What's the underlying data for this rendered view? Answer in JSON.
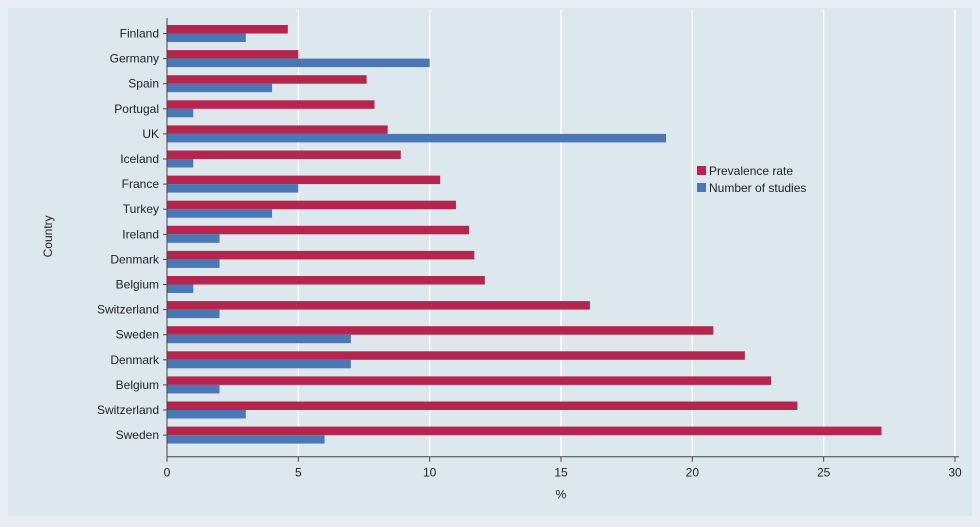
{
  "chart_data": {
    "type": "bar",
    "orientation": "horizontal",
    "categories": [
      "Finland",
      "Germany",
      "Spain",
      "Portugal",
      "UK",
      "Iceland",
      "France",
      "Turkey",
      "Ireland",
      "Denmark",
      "Belgium",
      "Switzerland",
      "Sweden",
      "Denmark",
      "Belgium",
      "Switzerland",
      "Sweden"
    ],
    "series": [
      {
        "name": "Prevalence rate",
        "color": "#b5254e",
        "values": [
          4.6,
          5.0,
          7.6,
          7.9,
          8.4,
          8.9,
          10.4,
          11.0,
          11.5,
          11.7,
          12.1,
          16.1,
          20.8,
          22.0,
          23.0,
          24.0,
          27.2
        ]
      },
      {
        "name": "Number of studies",
        "color": "#4a78b5",
        "values": [
          3,
          10,
          4,
          1,
          19,
          1,
          5,
          4,
          2,
          2,
          1,
          2,
          7,
          7,
          2,
          3,
          6
        ]
      }
    ],
    "xlabel": "%",
    "ylabel": "Country",
    "xlim": [
      0,
      30
    ],
    "xticks": [
      0,
      5,
      10,
      15,
      20,
      25,
      30
    ],
    "grid": "vertical",
    "legend_position": "right-center",
    "plot_background": "#dde7ee",
    "outer_background": "#e8eef3"
  }
}
